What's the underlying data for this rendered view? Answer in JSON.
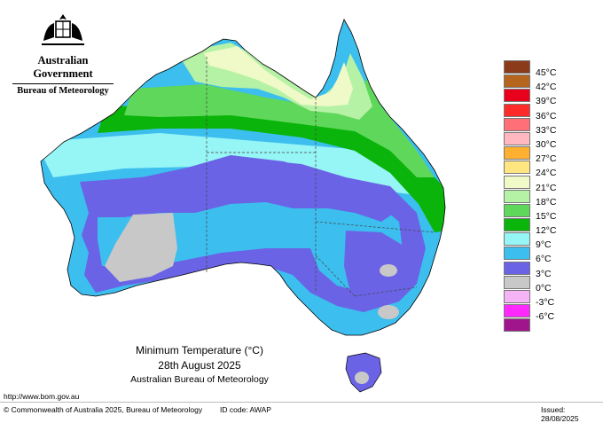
{
  "agency": {
    "title": "Australian Government",
    "subtitle": "Bureau of Meteorology"
  },
  "caption": {
    "line1": "Minimum Temperature (°C)",
    "line2": "28th August 2025",
    "line3": "Australian Bureau of Meteorology"
  },
  "legend": [
    {
      "label": "45°C",
      "color": "#8b3a1a"
    },
    {
      "label": "42°C",
      "color": "#b5651d"
    },
    {
      "label": "39°C",
      "color": "#e8001c"
    },
    {
      "label": "36°C",
      "color": "#ff2a2a"
    },
    {
      "label": "33°C",
      "color": "#ff6f78"
    },
    {
      "label": "30°C",
      "color": "#ffb8c0"
    },
    {
      "label": "27°C",
      "color": "#ffb030"
    },
    {
      "label": "24°C",
      "color": "#ffe680"
    },
    {
      "label": "21°C",
      "color": "#f0f9c8"
    },
    {
      "label": "18°C",
      "color": "#b6f2a5"
    },
    {
      "label": "15°C",
      "color": "#5fd75a"
    },
    {
      "label": "12°C",
      "color": "#0ab40a"
    },
    {
      "label": "9°C",
      "color": "#96f5f5"
    },
    {
      "label": "6°C",
      "color": "#3cbeee"
    },
    {
      "label": "3°C",
      "color": "#6b63e6"
    },
    {
      "label": "0°C",
      "color": "#c8c8c8"
    },
    {
      "label": "-3°C",
      "color": "#f5b4f5"
    },
    {
      "label": "-6°C",
      "color": "#ff28ff"
    },
    {
      "label": "",
      "color": "#a0148c"
    }
  ],
  "footer": {
    "url": "http://www.bom.gov.au",
    "copyright": "© Commonwealth of Australia 2025, Bureau of Meteorology",
    "id_code": "ID code: AWAP",
    "issued": "Issued: 28/08/2025"
  }
}
